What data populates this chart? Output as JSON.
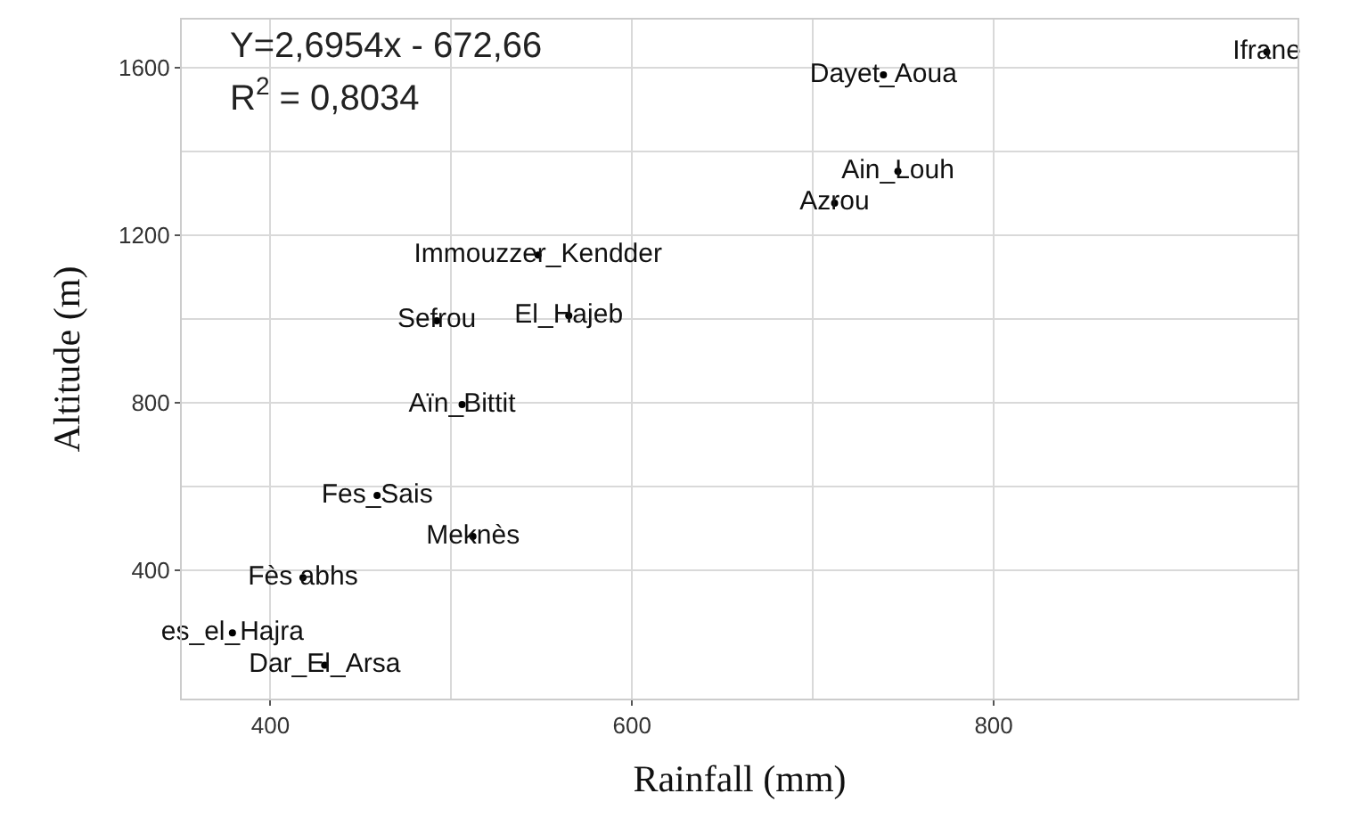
{
  "chart_data": {
    "type": "scatter",
    "xlabel": "Rainfall (mm)",
    "ylabel": "Altitude (m)",
    "annotations": [
      "Y=2,6954x - 672,66",
      "R$^{2}$ = 0,8034"
    ],
    "series": [
      {
        "color": "#000000",
        "marker": "circle",
        "x": [
          548,
          492,
          565,
          739,
          747,
          712,
          951,
          506,
          459,
          512,
          418,
          379,
          430
        ],
        "values": [
          1153,
          996,
          1008,
          1583,
          1353,
          1277,
          1638,
          796,
          579,
          481,
          383,
          251,
          174
        ],
        "value_labels": [
          "Immouzzer_Kendder",
          "Sefrou",
          "El_Hajeb",
          "Dayet_Aoua",
          "Ain_Louh",
          "Azrou",
          "Ifrane",
          "Aïn_Bittit",
          "Fes_Sais",
          "Meknès",
          "Fès abhs",
          "es_el_Hajra",
          "Dar_El_Arsa"
        ]
      }
    ],
    "xlim": [
      351,
      968
    ],
    "xticks": [
      400,
      600,
      800
    ],
    "ylim": [
      94,
      1715
    ],
    "yticks": [
      400,
      800,
      1200,
      1600
    ],
    "grid": true
  }
}
